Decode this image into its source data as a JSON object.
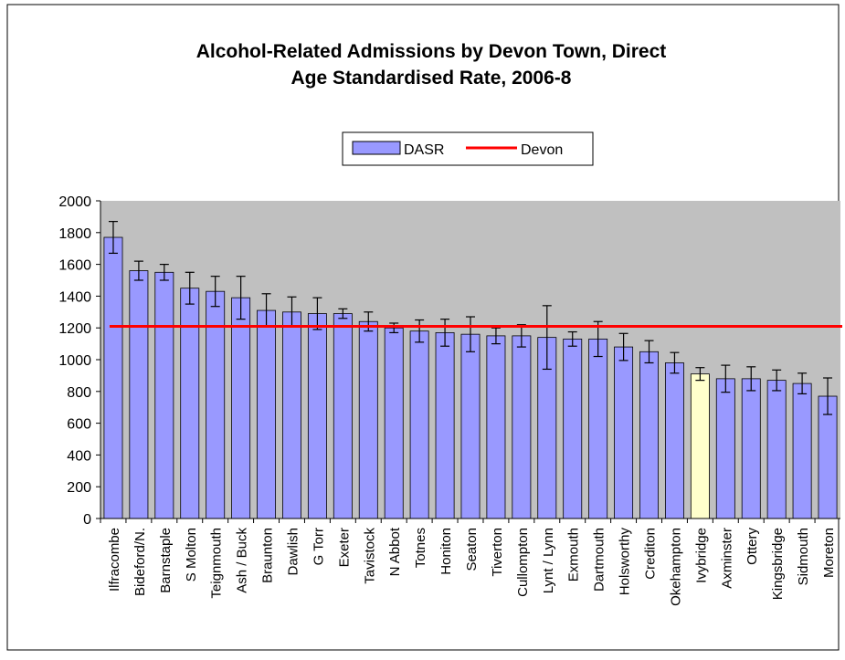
{
  "chart_data": {
    "type": "bar",
    "title": [
      "Alcohol-Related Admissions by Devon Town, Direct",
      "Age Standardised Rate, 2006-8"
    ],
    "categories": [
      "Ilfracombe",
      "Bideford/N.",
      "Barnstaple",
      "S Molton",
      "Teignmouth",
      "Ash / Buck",
      "Braunton",
      "Dawlish",
      "G Torr",
      "Exeter",
      "Tavistock",
      "N Abbot",
      "Totnes",
      "Honiton",
      "Seaton",
      "Tiverton",
      "Cullompton",
      "Lynt / Lynn",
      "Exmouth",
      "Dartmouth",
      "Holsworthy",
      "Crediton",
      "Okehampton",
      "Ivybridge",
      "Axminster",
      "Ottery",
      "Kingsbridge",
      "Sidmouth",
      "Moreton"
    ],
    "series": [
      {
        "name": "DASR",
        "color": "#9999ff",
        "bar_colors": [
          "#9999ff",
          "#9999ff",
          "#9999ff",
          "#9999ff",
          "#9999ff",
          "#9999ff",
          "#9999ff",
          "#9999ff",
          "#9999ff",
          "#9999ff",
          "#9999ff",
          "#9999ff",
          "#9999ff",
          "#9999ff",
          "#9999ff",
          "#9999ff",
          "#9999ff",
          "#9999ff",
          "#9999ff",
          "#9999ff",
          "#9999ff",
          "#9999ff",
          "#9999ff",
          "#ffffcc",
          "#9999ff",
          "#9999ff",
          "#9999ff",
          "#9999ff",
          "#9999ff"
        ],
        "values": [
          1770,
          1560,
          1550,
          1450,
          1430,
          1390,
          1310,
          1300,
          1290,
          1290,
          1240,
          1200,
          1180,
          1170,
          1160,
          1150,
          1150,
          1140,
          1130,
          1130,
          1080,
          1050,
          980,
          910,
          880,
          880,
          870,
          850,
          770
        ],
        "errors": [
          100,
          60,
          50,
          100,
          95,
          135,
          105,
          95,
          100,
          30,
          60,
          30,
          70,
          85,
          110,
          50,
          70,
          200,
          45,
          110,
          85,
          70,
          65,
          40,
          85,
          75,
          65,
          65,
          115
        ]
      },
      {
        "name": "Devon",
        "color": "#ff0000",
        "value": 1210
      }
    ],
    "ylim": [
      0,
      2000
    ],
    "yticks": [
      0,
      200,
      400,
      600,
      800,
      1000,
      1200,
      1400,
      1600,
      1800,
      2000
    ],
    "plot_background": "#c0c0c0"
  }
}
